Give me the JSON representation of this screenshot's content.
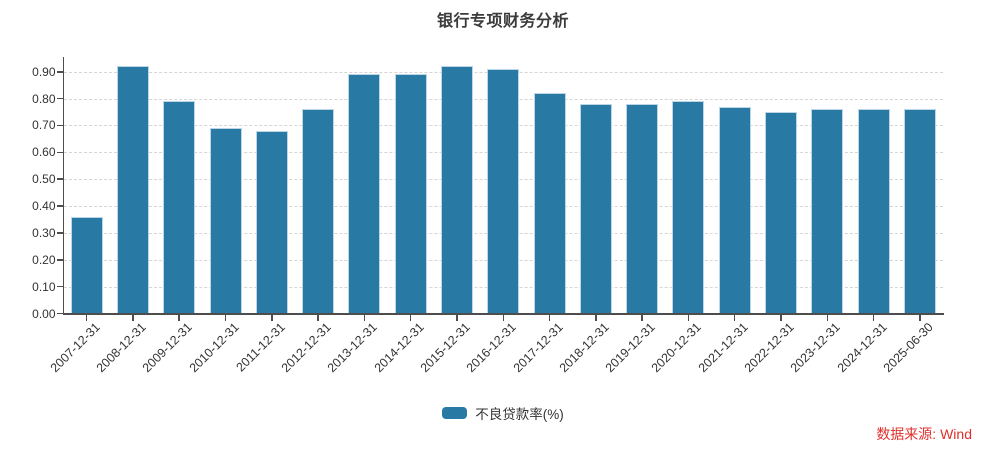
{
  "title": "银行专项财务分析",
  "chart_data": {
    "type": "bar",
    "title": "银行专项财务分析",
    "categories": [
      "2007-12-31",
      "2008-12-31",
      "2009-12-31",
      "2010-12-31",
      "2011-12-31",
      "2012-12-31",
      "2013-12-31",
      "2014-12-31",
      "2015-12-31",
      "2016-12-31",
      "2017-12-31",
      "2018-12-31",
      "2019-12-31",
      "2020-12-31",
      "2021-12-31",
      "2022-12-31",
      "2023-12-31",
      "2024-12-31",
      "2025-06-30"
    ],
    "series": [
      {
        "name": "不良贷款率(%)",
        "values": [
          0.36,
          0.92,
          0.79,
          0.69,
          0.68,
          0.76,
          0.89,
          0.89,
          0.92,
          0.91,
          0.82,
          0.78,
          0.78,
          0.79,
          0.77,
          0.75,
          0.76,
          0.76,
          0.76
        ]
      }
    ],
    "xlabel": "",
    "ylabel": "",
    "ylim": [
      0,
      0.955
    ],
    "ytick_step": 0.1,
    "ytick_decimals": 2,
    "ytick_labels": [
      "0.00",
      "0.10",
      "0.20",
      "0.30",
      "0.40",
      "0.50",
      "0.60",
      "0.70",
      "0.80",
      "0.90"
    ],
    "grid": "horizontal-dashed",
    "legend_position": "bottom",
    "colors": {
      "bar": "#2879a4",
      "bar_border": "#bcd6e5",
      "grid": "#d6d6d6",
      "axis": "#4d4d4d",
      "tick_label": "#333333",
      "title": "#3b3b3b"
    }
  },
  "legend": {
    "label": "不良贷款率(%)"
  },
  "source": {
    "label": "数据来源: Wind",
    "color": "#e0302c"
  }
}
